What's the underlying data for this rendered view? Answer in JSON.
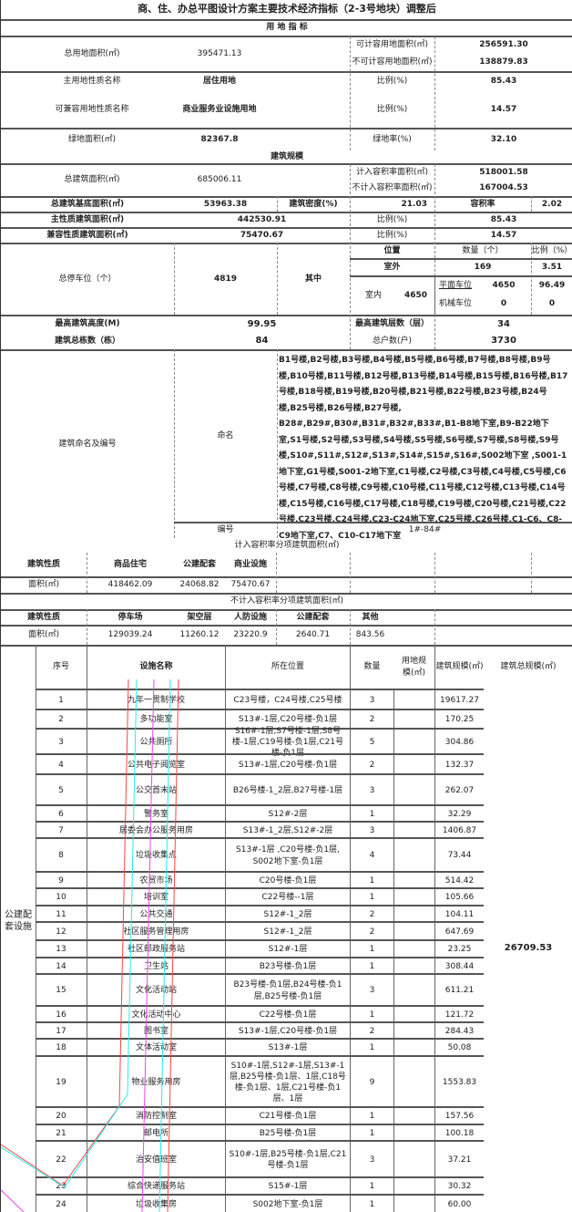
{
  "title": "商、住、办总平图设计方案主要技术经济指标（2-3号地块）调整后",
  "land": {
    "section": "用 地 指 标",
    "total_area_label": "总用地面积(㎡)",
    "total_area": "395471.13",
    "far_land_label": "可计容用地面积(㎡)",
    "far_land": "256591.30",
    "nonfar_land_label": "不可计容用地面积(㎡)",
    "nonfar_land": "138879.83",
    "main_use_label": "主用地性质名称",
    "main_use": "居住用地",
    "main_ratio_label": "比例(%)",
    "main_ratio": "85.43",
    "compat_use_label": "可兼容用地性质名称",
    "compat_use": "商业服务业设施用地",
    "compat_ratio_label": "比例(%)",
    "compat_ratio": "14.57",
    "green_label": "绿地面积(㎡)",
    "green": "82367.8",
    "green_rate_label": "绿地率(%)",
    "green_rate": "32.10"
  },
  "building": {
    "section": "建筑规模",
    "total_label": "总建筑面积(㎡)",
    "total": "685006.11",
    "far_label": "计入容积率面积(㎡)",
    "far": "518001.58",
    "nonfar_label": "不计入容积率面积(㎡)",
    "nonfar": "167004.53",
    "base_label": "总建筑基底面积(㎡)",
    "base": "53963.38",
    "density_label": "建筑密度(%)",
    "density": "21.03",
    "plot_ratio_label": "容积率",
    "plot_ratio": "2.02",
    "main_label": "主性质建筑面积(㎡)",
    "main": "442530.91",
    "main_ratio_label": "比例(%)",
    "main_ratio": "85.43",
    "compat_label": "兼容性质建筑面积(㎡)",
    "compat": "75470.67",
    "compat_ratio_label": "比例(%)",
    "compat_ratio": "14.57"
  },
  "parking": {
    "label": "总停车位（个）",
    "total": "4819",
    "of_which": "其中",
    "col_position": "位置",
    "col_count": "数量（个）",
    "col_ratio": "比例（%）",
    "outdoor_label": "室外",
    "outdoor": "169",
    "outdoor_ratio": "3.51",
    "indoor_label": "室内",
    "indoor": "4650",
    "flat_label": "平面车位",
    "flat": "4650",
    "flat_ratio": "96.49",
    "mech_label": "机械车位",
    "mech": "0",
    "mech_ratio": "0"
  },
  "height": {
    "max_height_label": "最高建筑高度(M)",
    "max_height": "99.95",
    "max_floors_label": "最高建筑层数（层）",
    "max_floors": "34",
    "count_label": "建筑总栋数（栋）",
    "count": "84",
    "households_label": "总户数(户)",
    "households": "3730"
  },
  "naming": {
    "label": "建筑命名及编号",
    "name_label": "命名",
    "names": "B1号楼,B2号楼,B3号楼,B4号楼,B5号楼,B6号楼,B7号楼,B8号楼,B9号楼,B10号楼,B11号楼,B12号楼,B13号楼,B14号楼,B15号楼,B16号楼,B17号楼,B18号楼,B19号楼,B20号楼,B21号楼,B22号楼,B23号楼,B24号楼,B25号楼,B26号楼,B27号楼, B28#,B29#,B30#,B31#,B32#,B33#,B1-B8地下室,B9-B22地下室,S1号楼,S2号楼,S3号楼,S4号楼,S5号楼,S6号楼,S7号楼,S8号楼,S9号楼,S10#,S11#,S12#,S13#,S14#,S15#,S16#,S002地下室 ,S001-1地下室,G1号楼,S001-2地下室,C1号楼,C2号楼,C3号楼,C4号楼,C5号楼,C6号楼,C7号楼,C8号楼,C9号楼,C10号楼,C11号楼,C12号楼,C13号楼,C14号楼,C15号楼,C16号楼,C17号楼,C18号楼,C19号楼,C20号楼,C21号楼,C22号楼,C23号楼,C24号楼,C23-C24地下室,C25号楼,C26号楼,C1-C6、C8-C9地下室,C7、C10-C17地下室",
    "number_label": "编号",
    "number": "1#-84#"
  },
  "far_items": {
    "title": "计入容积率分项建筑面积(㎡)",
    "type_label": "建筑性质",
    "area_label": "面积(㎡)",
    "headers": [
      "商品住宅",
      "公建配套",
      "商业设施"
    ],
    "values": [
      "418462.09",
      "24068.82",
      "75470.67"
    ]
  },
  "nonfar_items": {
    "title": "不计入容积率分项建筑面积(㎡)",
    "type_label": "建筑性质",
    "area_label": "面积(㎡)",
    "headers": [
      "停车场",
      "架空层",
      "人防设施",
      "公建配套",
      "其他"
    ],
    "values": [
      "129039.24",
      "11260.12",
      "23220.9",
      "2640.71",
      "843.56"
    ]
  },
  "facilities": {
    "group_label": "公建配套设施",
    "headers": {
      "no": "序号",
      "name": "设施名称",
      "location": "所在位置",
      "qty": "数量",
      "land": "用地规模(㎡)",
      "area": "建筑规模(㎡)",
      "total": "建筑总规模(㎡)"
    },
    "total": "26709.53",
    "rows": [
      {
        "no": "1",
        "name": "九年一贯制学校",
        "location": "C23号楼，C24号楼,C25号楼",
        "qty": "3",
        "area": "19617.27"
      },
      {
        "no": "2",
        "name": "多功能室",
        "location": "S13#-1层,C20号楼-负1层",
        "qty": "2",
        "area": "170.25"
      },
      {
        "no": "3",
        "name": "公共厕所",
        "location": "S16#-1层,S7号楼-1层,S8号楼-1层,C19号楼-负1层,C21号楼-负1层",
        "qty": "5",
        "area": "304.86"
      },
      {
        "no": "4",
        "name": "公共电子阅览室",
        "location": "S13#-1层,C20号楼-负1层",
        "qty": "2",
        "area": "132.37"
      },
      {
        "no": "5",
        "name": "公交首末站",
        "location": "B26号楼-1_2层,B27号楼-1层",
        "qty": "3",
        "area": "262.07"
      },
      {
        "no": "6",
        "name": "警务室",
        "location": "S12#-2层",
        "qty": "1",
        "area": "32.29"
      },
      {
        "no": "7",
        "name": "居委会办公服务用房",
        "location": "S13#-1_2层,S12#-2层",
        "qty": "3",
        "area": "1406.87"
      },
      {
        "no": "8",
        "name": "垃圾收集点",
        "location": "S13#-1层 ,C20号楼-负1层, S002地下室-负1层",
        "qty": "4",
        "area": "73.44"
      },
      {
        "no": "9",
        "name": "农贸市场",
        "location": "C20号楼-负1层",
        "qty": "1",
        "area": "514.42"
      },
      {
        "no": "10",
        "name": "培训室",
        "location": "C22号楼--1层",
        "qty": "1",
        "area": "105.66"
      },
      {
        "no": "11",
        "name": "公共交通",
        "location": "S12#-1_2层",
        "qty": "2",
        "area": "104.11"
      },
      {
        "no": "12",
        "name": "社区服务管理用房",
        "location": "S12#-1_2层",
        "qty": "2",
        "area": "647.69"
      },
      {
        "no": "13",
        "name": "社区邮政服务站",
        "location": "S12#-1层",
        "qty": "1",
        "area": "23.25"
      },
      {
        "no": "14",
        "name": "卫生站",
        "location": "B23号楼-负1层",
        "qty": "1",
        "area": "308.44"
      },
      {
        "no": "15",
        "name": "文化活动站",
        "location": "B23号楼-负1层,B24号楼-负1层,B25号楼-负1层",
        "qty": "3",
        "area": "611.21"
      },
      {
        "no": "16",
        "name": "文化活动中心",
        "location": "C22号楼-负1层",
        "qty": "1",
        "area": "121.72"
      },
      {
        "no": "17",
        "name": "图书室",
        "location": "S13#-1层,C20号楼-负1层",
        "qty": "2",
        "area": "284.43"
      },
      {
        "no": "18",
        "name": "文体活动室",
        "location": "S13#-1层",
        "qty": "1",
        "area": "50.08"
      },
      {
        "no": "19",
        "name": "物业服务用房",
        "location": "S10#-1层,S12#-1层,S13#-1层,B25号楼-负1层、1层,C18号楼-负1层、1层,C21号楼-负1层、1层",
        "qty": "9",
        "area": "1553.83"
      },
      {
        "no": "20",
        "name": "消防控制室",
        "location": "C21号楼-负1层",
        "qty": "1",
        "area": "157.56"
      },
      {
        "no": "21",
        "name": "邮电所",
        "location": "B25号楼-负1层",
        "qty": "1",
        "area": "100.18"
      },
      {
        "no": "22",
        "name": "治安值班室",
        "location": "S10#-1层,B25号楼-负1层,C21号楼-负1层",
        "qty": "3",
        "area": "37.21"
      },
      {
        "no": "23",
        "name": "综合快递服务站",
        "location": "S15#-1层",
        "qty": "1",
        "area": "30.32"
      },
      {
        "no": "24",
        "name": "垃圾收集房",
        "location": "S002地下室-负1层",
        "qty": "1",
        "area": "60.00"
      }
    ]
  }
}
